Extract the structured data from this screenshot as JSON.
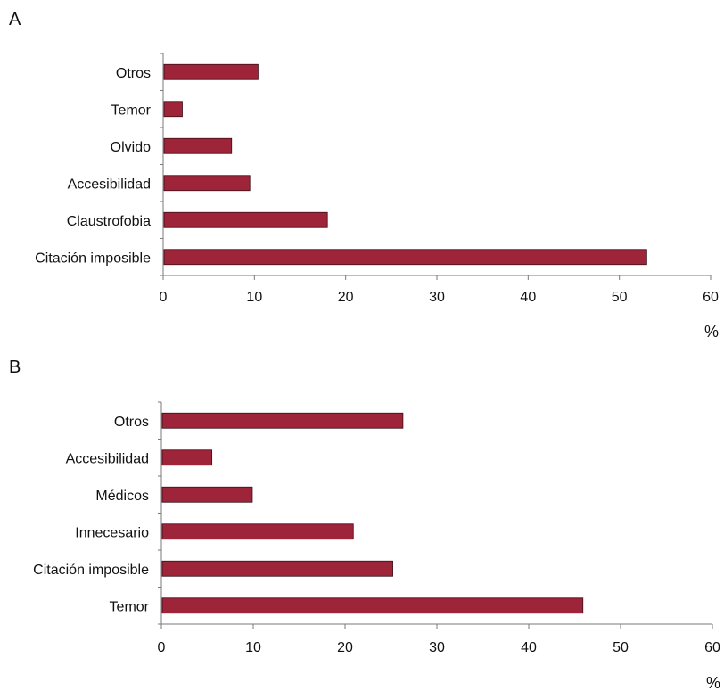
{
  "bar_color": "#9e2439",
  "chart_data": [
    {
      "panel_label": "A",
      "type": "bar",
      "orientation": "horizontal",
      "categories": [
        "Otros",
        "Temor",
        "Olvido",
        "Accesibilidad",
        "Claustrofobia",
        "Citación imposible"
      ],
      "values": [
        10.4,
        2.1,
        7.5,
        9.5,
        18,
        53
      ],
      "xlabel": "%",
      "xlim": [
        0,
        60
      ],
      "xticks": [
        0,
        10,
        20,
        30,
        40,
        50,
        60
      ]
    },
    {
      "panel_label": "B",
      "type": "bar",
      "orientation": "horizontal",
      "categories": [
        "Otros",
        "Accesibilidad",
        "Médicos",
        "Innecesario",
        "Citación imposible",
        "Temor"
      ],
      "values": [
        26.3,
        5.5,
        9.9,
        20.9,
        25.2,
        45.9
      ],
      "xlabel": "%",
      "xlim": [
        0,
        60
      ],
      "xticks": [
        0,
        10,
        20,
        30,
        40,
        50,
        60
      ]
    }
  ]
}
